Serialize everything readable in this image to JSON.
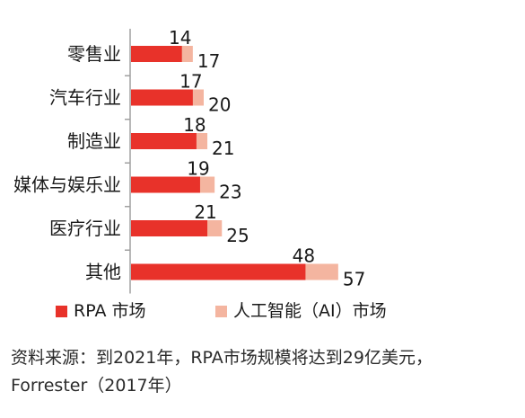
{
  "chart_data": {
    "type": "bar",
    "orientation": "horizontal",
    "stacking": "overlay",
    "categories": [
      "零售业",
      "汽车行业",
      "制造业",
      "媒体与娱乐业",
      "医疗行业",
      "其他"
    ],
    "series": [
      {
        "name": "RPA 市场",
        "values": [
          14,
          17,
          18,
          19,
          21,
          48
        ],
        "color": "#e8322a"
      },
      {
        "name": "人工智能（AI）市场",
        "values": [
          17,
          20,
          21,
          23,
          25,
          57
        ],
        "color": "#f4b5a0"
      }
    ],
    "legend_position": "bottom",
    "grid": false
  },
  "source": {
    "line1": "资料来源：到2021年，RPA市场规模将达到29亿美元，",
    "line2": "Forrester（2017年）"
  }
}
